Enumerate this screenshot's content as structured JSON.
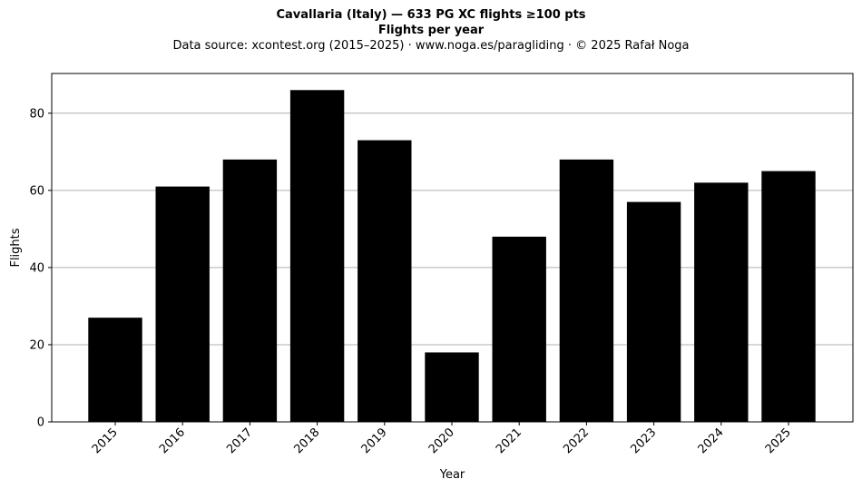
{
  "chart_data": {
    "type": "bar",
    "title": "Cavallaria (Italy)  —  633 PG XC flights ≥100 pts",
    "title_line2": "Flights per year",
    "subtitle": "Data source: xcontest.org (2015–2025)  ·  www.noga.es/paragliding  ·  © 2025 Rafał Noga",
    "xlabel": "Year",
    "ylabel": "Flights",
    "categories": [
      "2015",
      "2016",
      "2017",
      "2018",
      "2019",
      "2020",
      "2021",
      "2022",
      "2023",
      "2024",
      "2025"
    ],
    "values": [
      27,
      61,
      68,
      86,
      73,
      18,
      48,
      68,
      57,
      62,
      65
    ],
    "ylim": [
      0,
      90.3
    ],
    "yticks": [
      0,
      20,
      40,
      60,
      80
    ],
    "bar_color": "#000000",
    "grid": "y-major",
    "grid_color": "#b0b0b0"
  }
}
